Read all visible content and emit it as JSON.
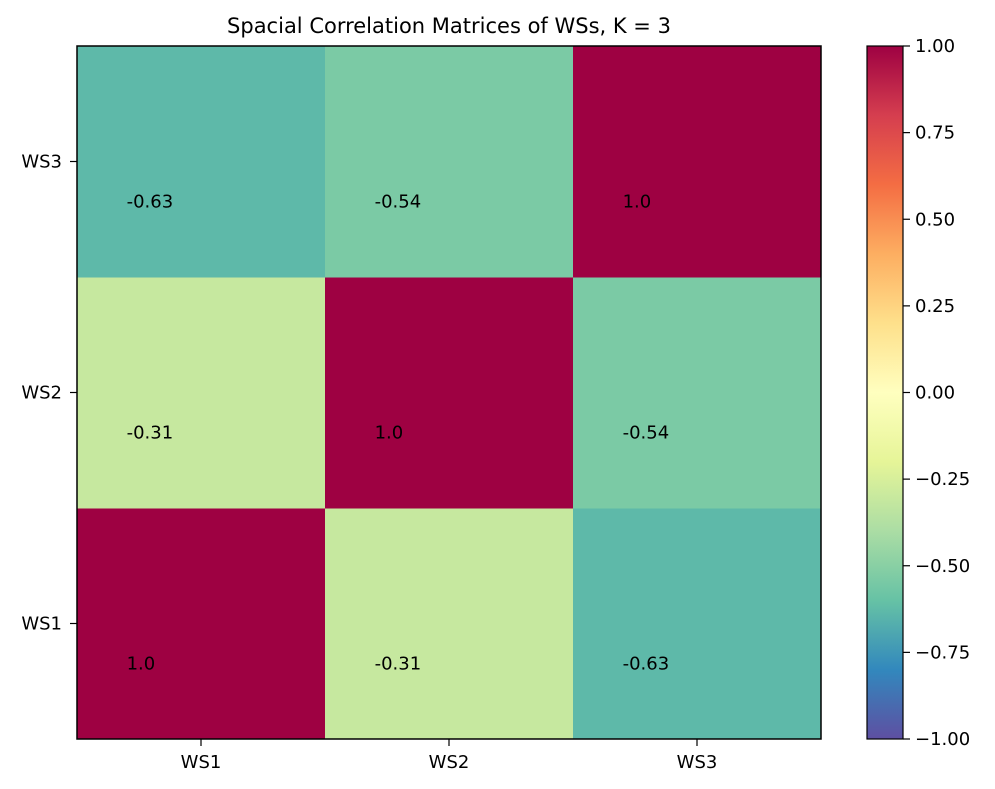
{
  "chart_data": {
    "type": "heatmap",
    "title": "Spacial Correlation Matrices of WSs, K = 3",
    "x_categories": [
      "WS1",
      "WS2",
      "WS3"
    ],
    "y_categories": [
      "WS1",
      "WS2",
      "WS3"
    ],
    "matrix": [
      [
        1.0,
        -0.31,
        -0.63
      ],
      [
        -0.31,
        1.0,
        -0.54
      ],
      [
        -0.63,
        -0.54,
        1.0
      ]
    ],
    "cell_labels": [
      [
        "1.0",
        "-0.31",
        "-0.63"
      ],
      [
        "-0.31",
        "1.0",
        "-0.54"
      ],
      [
        "-0.63",
        "-0.54",
        "1.0"
      ]
    ],
    "colormap": "Spectral_r",
    "vmin": -1.0,
    "vmax": 1.0,
    "colorbar": {
      "ticks": [
        1.0,
        0.75,
        0.5,
        0.25,
        0.0,
        -0.25,
        -0.5,
        -0.75,
        -1.0
      ],
      "tick_labels": [
        "1.00",
        "0.75",
        "0.50",
        "0.25",
        "0.00",
        "−0.25",
        "−0.50",
        "−0.75",
        "−1.00"
      ]
    }
  }
}
